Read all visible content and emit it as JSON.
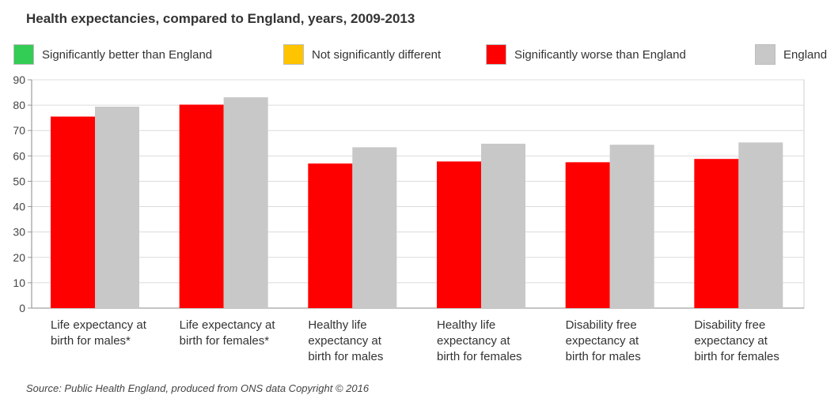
{
  "title": "Health expectancies, compared to England, years, 2009-2013",
  "legend": [
    {
      "label": "Significantly better than England",
      "color": "#33cc55"
    },
    {
      "label": "Not significantly different",
      "color": "#ffc400"
    },
    {
      "label": "Significantly worse than England",
      "color": "#ff0000"
    },
    {
      "label": "England",
      "color": "#c8c8c8"
    }
  ],
  "source": "Source: Public Health England, produced from ONS data Copyright © 2016",
  "chart_data": {
    "type": "bar",
    "categories": [
      [
        "Life expectancy at",
        "birth for males*"
      ],
      [
        "Life expectancy at",
        "birth for females*"
      ],
      [
        "Healthy life",
        "expectancy at",
        "birth for males"
      ],
      [
        "Healthy life",
        "expectancy at",
        "birth for females"
      ],
      [
        "Disability free",
        "expectancy at",
        "birth for males"
      ],
      [
        "Disability free",
        "expectancy at",
        "birth for females"
      ]
    ],
    "series": [
      {
        "name": "Significantly worse than England",
        "color": "#ff0000",
        "values": [
          75.5,
          80.2,
          57.0,
          57.8,
          57.5,
          58.8
        ]
      },
      {
        "name": "England",
        "color": "#c8c8c8",
        "values": [
          79.4,
          83.1,
          63.4,
          64.8,
          64.4,
          65.3
        ]
      }
    ],
    "yticks": [
      0,
      10,
      20,
      30,
      40,
      50,
      60,
      70,
      80,
      90
    ],
    "ylim": [
      0,
      90
    ],
    "grid": true,
    "legend_position": "top"
  }
}
